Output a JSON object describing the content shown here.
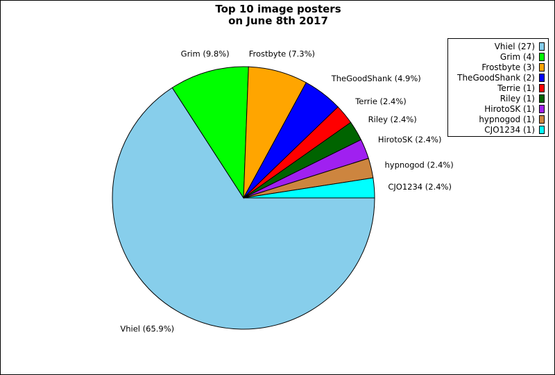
{
  "chart_data": {
    "type": "pie",
    "title_lines": [
      "Top 10 image posters",
      "on June 8th 2017"
    ],
    "start_angle_deg": 0,
    "direction": "clockwise",
    "slices": [
      {
        "name": "Vhiel",
        "value": 27,
        "label": "Vhiel (65.9%)",
        "legend": "Vhiel (27)",
        "color": "#87CEEB"
      },
      {
        "name": "Grim",
        "value": 4,
        "label": "Grim (9.8%)",
        "legend": "Grim (4)",
        "color": "#00FF00"
      },
      {
        "name": "Frostbyte",
        "value": 3,
        "label": "Frostbyte (7.3%)",
        "legend": "Frostbyte (3)",
        "color": "#FFA500"
      },
      {
        "name": "TheGoodShank",
        "value": 2,
        "label": "TheGoodShank (4.9%)",
        "legend": "TheGoodShank (2)",
        "color": "#0000FF"
      },
      {
        "name": "Terrie",
        "value": 1,
        "label": "Terrie (2.4%)",
        "legend": "Terrie (1)",
        "color": "#FF0000"
      },
      {
        "name": "Riley",
        "value": 1,
        "label": "Riley (2.4%)",
        "legend": "Riley (1)",
        "color": "#006400"
      },
      {
        "name": "HirotoSK",
        "value": 1,
        "label": "HirotoSK (2.4%)",
        "legend": "HirotoSK (1)",
        "color": "#A020F0"
      },
      {
        "name": "hypnogod",
        "value": 1,
        "label": "hypnogod (2.4%)",
        "legend": "hypnogod (1)",
        "color": "#CD853F"
      },
      {
        "name": "CJO1234",
        "value": 1,
        "label": "CJO1234 (2.4%)",
        "legend": "CJO1234 (1)",
        "color": "#00FFFF"
      }
    ],
    "legend_placement": "top-right"
  }
}
